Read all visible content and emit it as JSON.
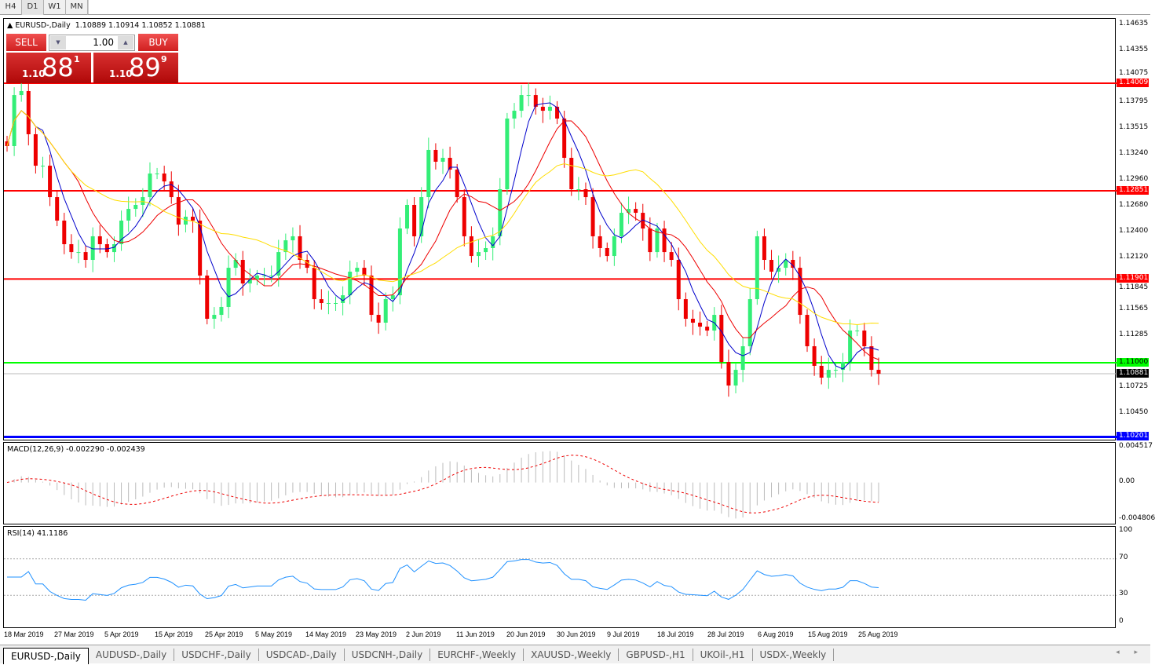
{
  "toolbar": {
    "timeframes": [
      "H4",
      "D1",
      "W1",
      "MN"
    ],
    "active": "D1"
  },
  "chart": {
    "title": "EURUSD-,Daily",
    "ohlc": "1.10889 1.10914 1.10852 1.10881",
    "trade": {
      "sell_label": "SELL",
      "buy_label": "BUY",
      "lot": "1.00",
      "bid_prefix": "1.10",
      "bid_big": "88",
      "bid_sup": "1",
      "ask_prefix": "1.10",
      "ask_big": "89",
      "ask_sup": "9"
    },
    "price_axis": [
      "1.14635",
      "1.14355",
      "1.14075",
      "1.13795",
      "1.13515",
      "1.13240",
      "1.12960",
      "1.12680",
      "1.12400",
      "1.12120",
      "1.11845",
      "1.11565",
      "1.11285",
      "1.10725",
      "1.10450"
    ],
    "price_axis_values": [
      1.14635,
      1.14355,
      1.14075,
      1.13795,
      1.13515,
      1.1324,
      1.1296,
      1.1268,
      1.124,
      1.1212,
      1.11845,
      1.11565,
      1.11285,
      1.10725,
      1.1045
    ],
    "hlines": [
      {
        "price": 1.14009,
        "label": "1.14009",
        "color": "#ff0000"
      },
      {
        "price": 1.12851,
        "label": "1.12851",
        "color": "#ff0000"
      },
      {
        "price": 1.11901,
        "label": "1.11901",
        "color": "#ff0000"
      },
      {
        "price": 1.11,
        "label": "1.11000",
        "color": "#00ff00"
      },
      {
        "price": 1.10201,
        "label": "1.10201",
        "color": "#0000ff"
      }
    ],
    "current": {
      "price": 1.10881,
      "label": "1.10881"
    },
    "colors": {
      "bull": "#33ee77",
      "bear": "#ee0000",
      "ma_fast": "#0000cc",
      "ma_mid": "#ee0000",
      "ma_slow": "#ffdd00"
    },
    "closes": [
      1.13333,
      1.13882,
      1.13925,
      1.1346,
      1.13121,
      1.13121,
      1.12783,
      1.1253,
      1.12276,
      1.12191,
      1.12191,
      1.12107,
      1.12361,
      1.12276,
      1.12191,
      1.12276,
      1.1253,
      1.12656,
      1.12699,
      1.12783,
      1.13037,
      1.13037,
      1.12952,
      1.12783,
      1.12487,
      1.12572,
      1.1253,
      1.11938,
      1.11473,
      1.11515,
      1.116,
      1.12022,
      1.12107,
      1.11853,
      1.11895,
      1.11938,
      1.11938,
      1.11938,
      1.12191,
      1.12318,
      1.12361,
      1.12107,
      1.12022,
      1.11684,
      1.11642,
      1.11642,
      1.11642,
      1.11726,
      1.1198,
      1.12022,
      1.11938,
      1.11515,
      1.11431,
      1.11684,
      1.11726,
      1.12445,
      1.12699,
      1.12361,
      1.12783,
      1.13291,
      1.13164,
      1.13206,
      1.13079,
      1.12783,
      1.12361,
      1.12149,
      1.12191,
      1.12234,
      1.12361,
      1.12868,
      1.13629,
      1.13713,
      1.13882,
      1.13882,
      1.13756,
      1.13713,
      1.13756,
      1.13629,
      1.13206,
      1.12868,
      1.12868,
      1.12783,
      1.12361,
      1.12234,
      1.12149,
      1.12361,
      1.12614,
      1.12656,
      1.12614,
      1.12445,
      1.12191,
      1.12445,
      1.12191,
      1.12107,
      1.11684,
      1.11473,
      1.11431,
      1.11388,
      1.11346,
      1.11515,
      1.11008,
      1.10754,
      1.10923,
      1.11177,
      1.11684,
      1.12361,
      1.12107,
      1.1198,
      1.12022,
      1.12107,
      1.12022,
      1.11515,
      1.11177,
      1.10966,
      1.10839,
      1.10923,
      1.10923,
      1.11008,
      1.11346,
      1.11346,
      1.11177,
      1.10923,
      1.10881
    ]
  },
  "macd": {
    "title": "MACD(12,26,9) -0.002290 -0.002439",
    "axis": [
      "0.004517",
      "0.00",
      "-0.004806"
    ],
    "range": [
      -0.004806,
      0.004517
    ]
  },
  "rsi": {
    "title": "RSI(14) 41.1186",
    "axis": [
      "100",
      "70",
      "30",
      "0"
    ],
    "levels": [
      70,
      30
    ]
  },
  "dates": [
    "18 Mar 2019",
    "27 Mar 2019",
    "5 Apr 2019",
    "15 Apr 2019",
    "25 Apr 2019",
    "5 May 2019",
    "14 May 2019",
    "23 May 2019",
    "2 Jun 2019",
    "11 Jun 2019",
    "20 Jun 2019",
    "30 Jun 2019",
    "9 Jul 2019",
    "18 Jul 2019",
    "28 Jul 2019",
    "6 Aug 2019",
    "15 Aug 2019",
    "25 Aug 2019"
  ],
  "tabs": [
    "EURUSD-,Daily",
    "AUDUSD-,Daily",
    "USDCHF-,Daily",
    "USDCAD-,Daily",
    "USDCNH-,Daily",
    "EURCHF-,Weekly",
    "XAUUSD-,Weekly",
    "GBPUSD-,H1",
    "UKOil-,H1",
    "USDX-,Weekly"
  ],
  "tab_nav": "◂ ▸"
}
